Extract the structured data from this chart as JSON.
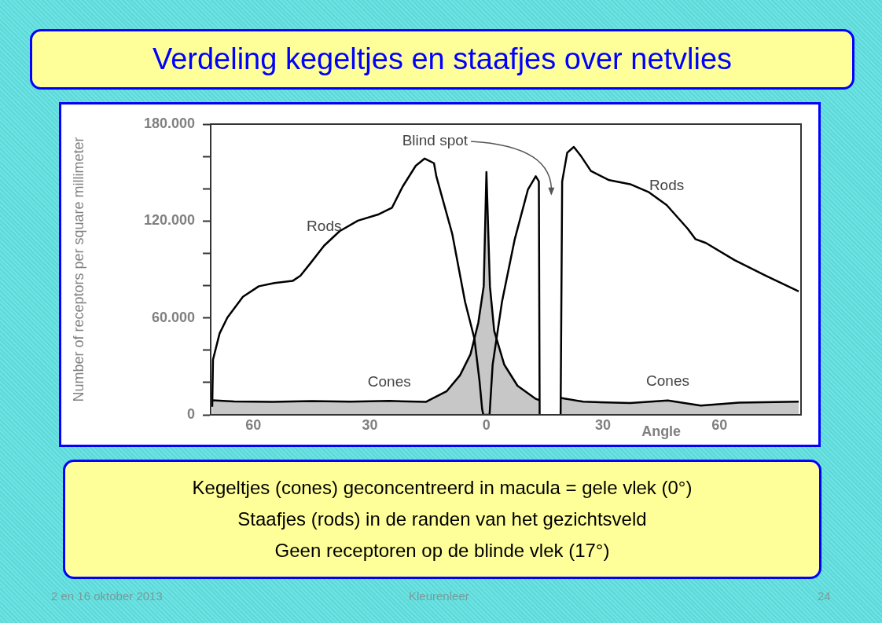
{
  "chart_data": {
    "type": "line",
    "title": "Verdeling kegeltjes en staafjes over netvlies",
    "xlabel": "Angle",
    "ylabel": "Number of receptors per square millimeter",
    "xlim": [
      -71,
      81
    ],
    "xticks": [
      {
        "value": -60,
        "label": "60"
      },
      {
        "value": -30,
        "label": "30"
      },
      0,
      30,
      60
    ],
    "ylim": [
      0,
      180000
    ],
    "yticks": [
      {
        "value": 0,
        "label": "0"
      },
      {
        "value": 20000,
        "label": null
      },
      {
        "value": 40000,
        "label": null
      },
      {
        "value": 60000,
        "label": "60.000"
      },
      {
        "value": 80000,
        "label": null
      },
      {
        "value": 100000,
        "label": null
      },
      {
        "value": 120000,
        "label": "120.000"
      },
      {
        "value": 140000,
        "label": null
      },
      {
        "value": 160000,
        "label": null
      },
      {
        "value": 180000,
        "label": "180.000"
      }
    ],
    "grid": false,
    "legend": false,
    "marker": "none",
    "line_style": "solid",
    "series": [
      {
        "name": "Rods",
        "color": "#000000",
        "x": [
          -70.6,
          -70.4,
          -68.7,
          -66.7,
          -62.7,
          -58.6,
          -54.6,
          -49.9,
          -47.9,
          -45.2,
          -41.8,
          -37.8,
          -33.1,
          -27.7,
          -24.3,
          -21.6,
          -18.2,
          -15.9,
          -13.5,
          -12.9,
          -8.8,
          -5.5,
          -3.1,
          -1.8,
          -1.1,
          -0.8,
          0.8,
          1.6,
          4.0,
          7.3,
          10.7,
          12.7,
          13.5,
          13.7,
          16,
          19.1,
          19.5,
          20.8,
          22.5,
          24.2,
          26.9,
          31.6,
          37.0,
          41.7,
          46.4,
          51.8,
          53.8,
          56.5,
          63.9,
          72.0,
          80.4
        ],
        "values": [
          5000,
          34200,
          50400,
          60200,
          73100,
          79600,
          81600,
          82900,
          86100,
          94200,
          104700,
          113700,
          120200,
          124200,
          128300,
          141200,
          154200,
          158700,
          155800,
          147700,
          112000,
          69900,
          47200,
          21300,
          3400,
          0,
          0,
          31000,
          69900,
          108800,
          139600,
          147700,
          144500,
          0,
          null,
          0,
          144500,
          162300,
          165900,
          160700,
          151000,
          145300,
          142800,
          138000,
          129900,
          115300,
          108800,
          106400,
          95800,
          86100,
          76400
        ]
      },
      {
        "name": "Cones",
        "type": "area",
        "color": "#000000",
        "x": [
          -70.6,
          -65,
          -55,
          -45,
          -35,
          -25,
          -15.6,
          -10.2,
          -6.8,
          -4.1,
          -2.1,
          -0.7,
          0,
          0.9,
          2.0,
          4.6,
          8.0,
          12.7,
          13.7,
          16,
          19.1,
          24.9,
          37,
          46.7,
          55.2,
          65,
          80.4
        ],
        "values": [
          9000,
          8300,
          8000,
          8500,
          8200,
          8600,
          8000,
          14700,
          24500,
          37500,
          56900,
          79600,
          150300,
          79600,
          52000,
          31000,
          18000,
          9900,
          9000,
          null,
          10500,
          8100,
          7300,
          8900,
          5700,
          7500,
          8100
        ]
      }
    ],
    "annotations": [
      "Blind spot",
      "Kegeltjes (cones) geconcentreerd in macula = gele vlek (0°)",
      "Staafjes (rods) in de randen van het gezichtsveld",
      "Geen receptoren op de blinde vlek (17°)",
      "2 en 16 oktober 2013",
      "Kleurenleer",
      "24"
    ]
  }
}
